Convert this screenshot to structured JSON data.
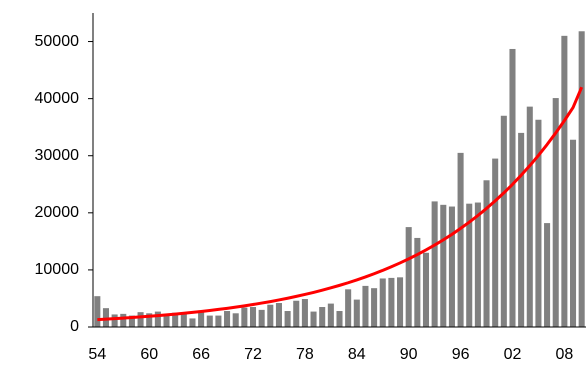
{
  "chart_data": {
    "type": "bar",
    "categories": [
      "54",
      null,
      null,
      null,
      null,
      null,
      "60",
      null,
      null,
      null,
      null,
      null,
      "66",
      null,
      null,
      null,
      null,
      null,
      "72",
      null,
      null,
      null,
      null,
      null,
      "78",
      null,
      null,
      null,
      null,
      null,
      "84",
      null,
      null,
      null,
      null,
      null,
      "90",
      null,
      null,
      null,
      null,
      null,
      "96",
      null,
      null,
      null,
      null,
      null,
      "02",
      null,
      null,
      null,
      null,
      null,
      "08",
      null,
      null
    ],
    "series": [
      {
        "type": "bar",
        "color": "#808080",
        "values": [
          5400,
          3300,
          2200,
          2300,
          2000,
          2600,
          2400,
          2700,
          2300,
          2500,
          2600,
          1500,
          2900,
          2000,
          2000,
          2800,
          2400,
          3400,
          3500,
          3000,
          3900,
          4200,
          2800,
          4600,
          4900,
          2700,
          3500,
          4100,
          2800,
          6600,
          4800,
          7200,
          6800,
          8500,
          8600,
          8700,
          17500,
          15600,
          13000,
          22000,
          21400,
          21100,
          30500,
          21600,
          21800,
          25700,
          29500,
          37000,
          48700,
          34000,
          38600,
          36300,
          18200,
          40100,
          51000,
          32800,
          51800
        ]
      },
      {
        "type": "line",
        "color": "#ff0000",
        "values": [
          1300,
          1380,
          1470,
          1560,
          1660,
          1770,
          1880,
          2000,
          2130,
          2260,
          2400,
          2560,
          2720,
          2890,
          3080,
          3270,
          3480,
          3700,
          3940,
          4190,
          4450,
          4740,
          5040,
          5360,
          5700,
          6060,
          6450,
          6860,
          7290,
          7750,
          8250,
          8770,
          9330,
          9920,
          10550,
          11220,
          11930,
          12690,
          13500,
          14350,
          15260,
          16230,
          17270,
          18360,
          19530,
          20770,
          22090,
          23490,
          24980,
          26570,
          28260,
          30050,
          31960,
          33990,
          36150,
          38440,
          42000
        ]
      }
    ],
    "ylim": [
      0,
      55000
    ],
    "yticks": [
      0,
      10000,
      20000,
      30000,
      40000,
      50000
    ]
  }
}
